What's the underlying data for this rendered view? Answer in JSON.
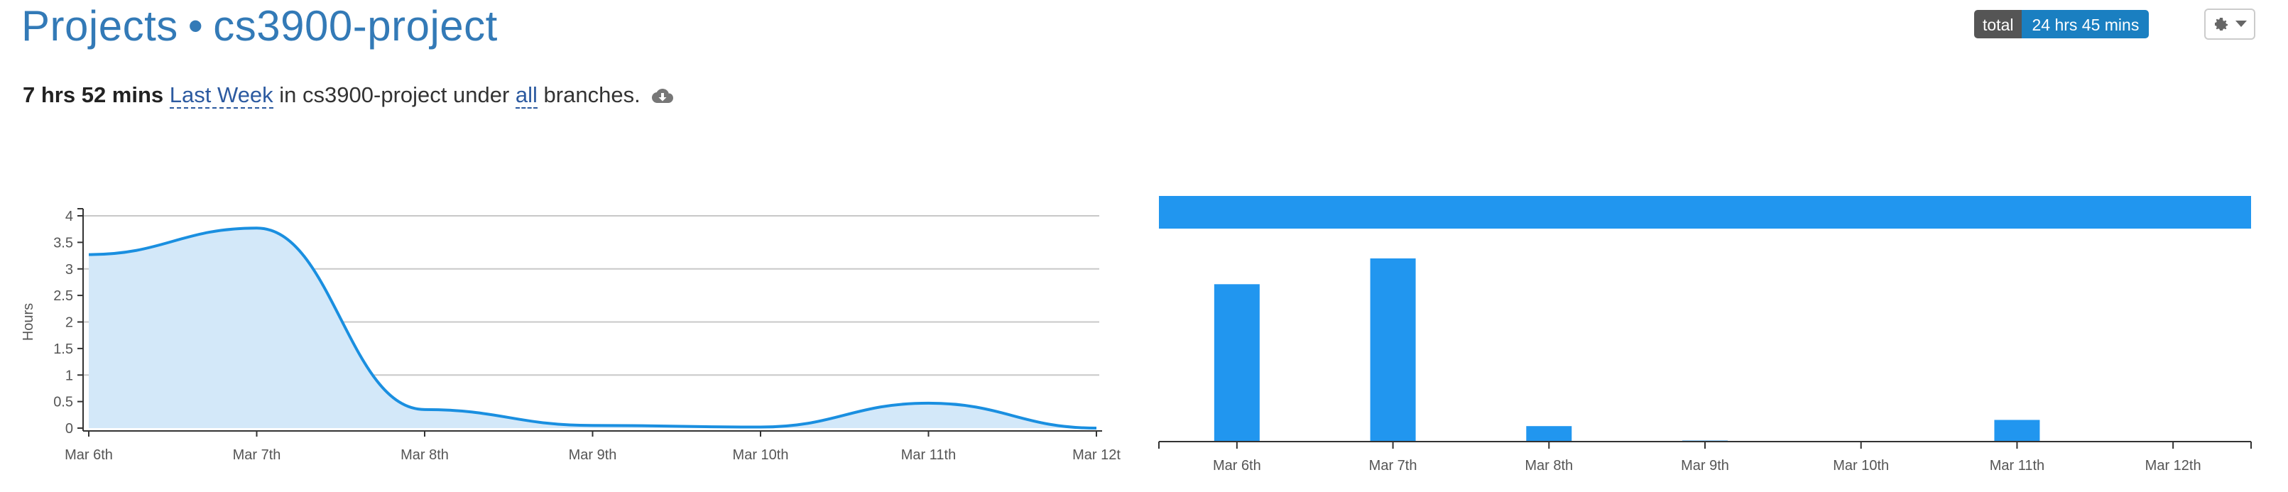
{
  "header": {
    "section": "Projects",
    "separator": "•",
    "project": "cs3900-project"
  },
  "summary": {
    "duration": "7 hrs 52 mins",
    "range_link": "Last Week",
    "in_text": "in cs3900-project under",
    "branches_link": "all",
    "suffix": "branches."
  },
  "total_badge": {
    "label": "total",
    "value": "24 hrs 45 mins"
  },
  "icons": {
    "download": "cloud-download-icon",
    "settings": "gear-icon",
    "caret": "caret-down-icon"
  },
  "colors": {
    "title": "#337ab7",
    "line": "#1a8fe0",
    "area": "#d3e8f9",
    "bar": "#2196ef",
    "badge_label": "#555555",
    "badge_value": "#1a7fc1"
  },
  "chart_data": [
    {
      "type": "area",
      "ylabel": "Hours",
      "categories": [
        "Mar 6th",
        "Mar 7th",
        "Mar 8th",
        "Mar 9th",
        "Mar 10th",
        "Mar 11th",
        "Mar 12t"
      ],
      "values": [
        3.27,
        3.77,
        0.35,
        0.05,
        0.02,
        0.47,
        0.0
      ],
      "yticks": [
        "0",
        "0.5",
        "1",
        "1.5",
        "2",
        "2.5",
        "3",
        "3.5",
        "4"
      ],
      "ylim": [
        0,
        4
      ],
      "grid": true
    },
    {
      "type": "bar",
      "categories": [
        "Mar 6th",
        "Mar 7th",
        "Mar 8th",
        "Mar 9th",
        "Mar 10th",
        "Mar 11th",
        "Mar 12th"
      ],
      "values": [
        3.05,
        3.55,
        0.3,
        0.02,
        0.0,
        0.42,
        0.0
      ],
      "ylim": [
        0,
        4.1
      ]
    }
  ]
}
